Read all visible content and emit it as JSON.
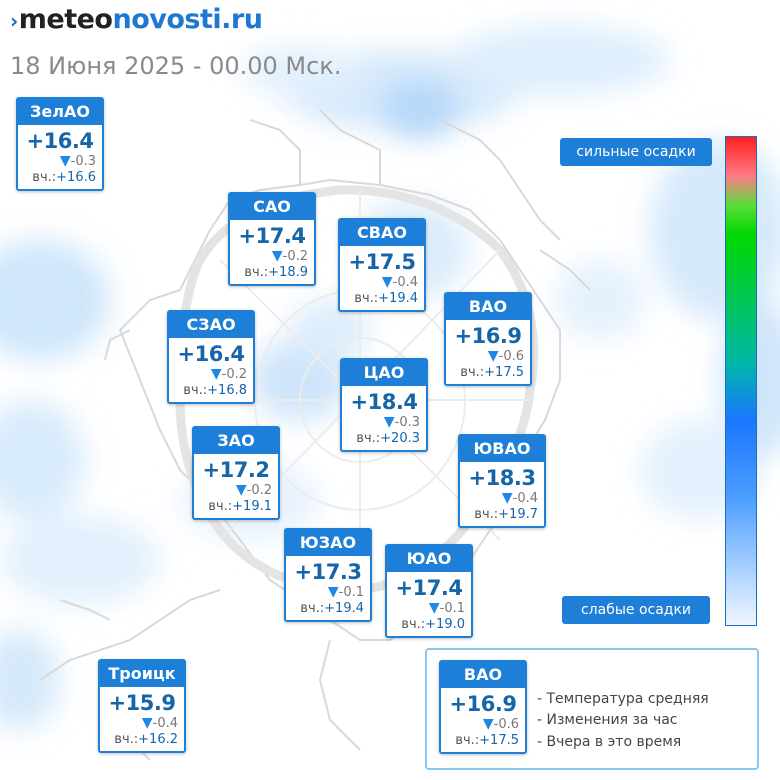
{
  "header": {
    "logo_part1": "meteo",
    "logo_part2": "novosti",
    "logo_part3": ".ru",
    "datetime": "18 Июня 2025 - 00.00 Мск."
  },
  "districts": [
    {
      "name": "ЗелАО",
      "temp": "+16.4",
      "change": "-0.3",
      "yesterday": "+16.6"
    },
    {
      "name": "САО",
      "temp": "+17.4",
      "change": "-0.2",
      "yesterday": "+18.9"
    },
    {
      "name": "СВАО",
      "temp": "+17.5",
      "change": "-0.4",
      "yesterday": "+19.4"
    },
    {
      "name": "ВАО",
      "temp": "+16.9",
      "change": "-0.6",
      "yesterday": "+17.5"
    },
    {
      "name": "СЗАО",
      "temp": "+16.4",
      "change": "-0.2",
      "yesterday": "+16.8"
    },
    {
      "name": "ЦАО",
      "temp": "+18.4",
      "change": "-0.3",
      "yesterday": "+20.3"
    },
    {
      "name": "ЗАО",
      "temp": "+17.2",
      "change": "-0.2",
      "yesterday": "+19.1"
    },
    {
      "name": "ЮВАО",
      "temp": "+18.3",
      "change": "-0.4",
      "yesterday": "+19.7"
    },
    {
      "name": "ЮЗАО",
      "temp": "+17.3",
      "change": "-0.1",
      "yesterday": "+19.4"
    },
    {
      "name": "ЮАО",
      "temp": "+17.4",
      "change": "-0.1",
      "yesterday": "+19.0"
    },
    {
      "name": "Троицк",
      "temp": "+15.9",
      "change": "-0.4",
      "yesterday": "+16.2"
    }
  ],
  "labels": {
    "yesterday_prefix": "вч.:",
    "change_arrow": "▼"
  },
  "precip_scale": {
    "top_label": "сильные осадки",
    "bottom_label": "слабые осадки",
    "colors": [
      "#ff1f1f",
      "#ff7b86",
      "#00d800",
      "#1a77ff",
      "#eef6ff"
    ]
  },
  "legend": {
    "sample": {
      "name": "ВАО",
      "temp": "+16.9",
      "change": "-0.6",
      "yesterday": "+17.5"
    },
    "line1": "- Температура средняя",
    "line2": "- Изменения за час",
    "line3": "- Вчера в это время"
  },
  "colors": {
    "accent": "#1e7fd8",
    "temp_text": "#1565a8"
  }
}
